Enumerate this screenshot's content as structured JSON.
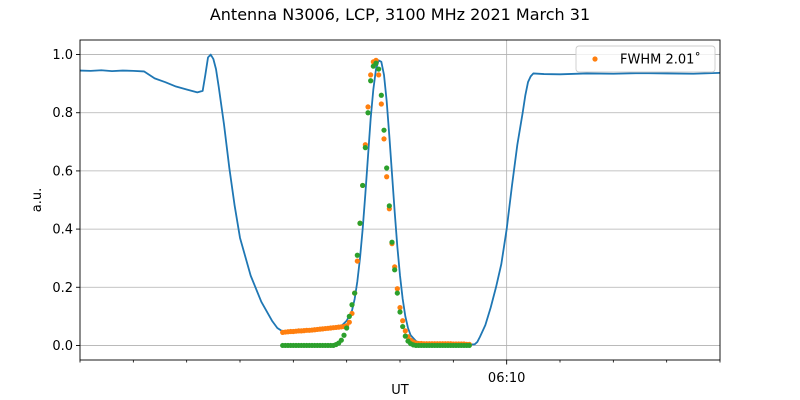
{
  "chart_data": {
    "type": "line",
    "title": "Antenna N3006, LCP, 3100 MHz 2021 March 31",
    "xlabel": "UT",
    "ylabel": "a.u.",
    "x_units": "minutes relative to 06:10 UT",
    "xlim": [
      -8,
      4
    ],
    "ylim": [
      -0.05,
      1.05
    ],
    "y_ticks": [
      0.0,
      0.2,
      0.4,
      0.6,
      0.8,
      1.0
    ],
    "y_tick_labels": [
      "0.0",
      "0.2",
      "0.4",
      "0.6",
      "0.8",
      "1.0"
    ],
    "x_major_ticks": [
      {
        "x": 0,
        "label": "06:10"
      }
    ],
    "x_minor_ticks": [
      -8,
      -7,
      -6,
      -5,
      -4,
      -3,
      -2,
      -1,
      1,
      2,
      3,
      4
    ],
    "grid": {
      "y_major": true,
      "x_major": true
    },
    "legend": {
      "position": "top-right",
      "entries": [
        {
          "label": "FWHM 2.01$^\\circ$",
          "display": "FWHM 2.01˚",
          "color": "#ff7f0e",
          "marker": "dot"
        }
      ]
    },
    "series": [
      {
        "kind": "line",
        "color": "#1f77b4",
        "points": [
          [
            -8.0,
            0.945
          ],
          [
            -7.8,
            0.944
          ],
          [
            -7.6,
            0.946
          ],
          [
            -7.4,
            0.943
          ],
          [
            -7.2,
            0.945
          ],
          [
            -7.0,
            0.944
          ],
          [
            -6.8,
            0.942
          ],
          [
            -6.7,
            0.93
          ],
          [
            -6.6,
            0.918
          ],
          [
            -6.4,
            0.905
          ],
          [
            -6.2,
            0.89
          ],
          [
            -6.0,
            0.88
          ],
          [
            -5.8,
            0.87
          ],
          [
            -5.7,
            0.875
          ],
          [
            -5.65,
            0.93
          ],
          [
            -5.6,
            0.99
          ],
          [
            -5.55,
            1.0
          ],
          [
            -5.5,
            0.985
          ],
          [
            -5.45,
            0.95
          ],
          [
            -5.4,
            0.89
          ],
          [
            -5.3,
            0.76
          ],
          [
            -5.2,
            0.61
          ],
          [
            -5.1,
            0.48
          ],
          [
            -5.0,
            0.37
          ],
          [
            -4.8,
            0.24
          ],
          [
            -4.6,
            0.15
          ],
          [
            -4.4,
            0.085
          ],
          [
            -4.3,
            0.06
          ],
          [
            -4.2,
            0.048
          ],
          [
            -4.0,
            0.05
          ],
          [
            -3.6,
            0.054
          ],
          [
            -3.2,
            0.06
          ],
          [
            -3.1,
            0.067
          ],
          [
            -3.0,
            0.085
          ],
          [
            -2.9,
            0.12
          ],
          [
            -2.85,
            0.16
          ],
          [
            -2.8,
            0.22
          ],
          [
            -2.75,
            0.3
          ],
          [
            -2.7,
            0.4
          ],
          [
            -2.65,
            0.52
          ],
          [
            -2.6,
            0.65
          ],
          [
            -2.55,
            0.78
          ],
          [
            -2.5,
            0.88
          ],
          [
            -2.45,
            0.95
          ],
          [
            -2.4,
            0.98
          ],
          [
            -2.35,
            0.975
          ],
          [
            -2.3,
            0.93
          ],
          [
            -2.25,
            0.84
          ],
          [
            -2.2,
            0.72
          ],
          [
            -2.15,
            0.59
          ],
          [
            -2.1,
            0.46
          ],
          [
            -2.05,
            0.34
          ],
          [
            -2.0,
            0.24
          ],
          [
            -1.95,
            0.16
          ],
          [
            -1.9,
            0.1
          ],
          [
            -1.85,
            0.06
          ],
          [
            -1.8,
            0.035
          ],
          [
            -1.7,
            0.015
          ],
          [
            -1.6,
            0.006
          ],
          [
            -1.2,
            0.004
          ],
          [
            -0.8,
            0.003
          ],
          [
            -1.0,
            0.003
          ],
          [
            -0.6,
            0.004
          ],
          [
            -0.55,
            0.012
          ],
          [
            -0.5,
            0.03
          ],
          [
            -0.4,
            0.07
          ],
          [
            -0.3,
            0.13
          ],
          [
            -0.2,
            0.2
          ],
          [
            -0.1,
            0.28
          ],
          [
            0.0,
            0.4
          ],
          [
            0.1,
            0.55
          ],
          [
            0.2,
            0.69
          ],
          [
            0.3,
            0.8
          ],
          [
            0.35,
            0.86
          ],
          [
            0.4,
            0.905
          ],
          [
            0.45,
            0.925
          ],
          [
            0.5,
            0.935
          ],
          [
            0.7,
            0.933
          ],
          [
            1.0,
            0.932
          ],
          [
            1.5,
            0.935
          ],
          [
            2.0,
            0.934
          ],
          [
            2.5,
            0.936
          ],
          [
            3.0,
            0.935
          ],
          [
            3.5,
            0.934
          ],
          [
            4.0,
            0.937
          ]
        ]
      },
      {
        "kind": "scatter",
        "name": "FWHM 2.01˚",
        "color": "#ff7f0e",
        "x": [
          -4.2,
          -4.15,
          -4.1,
          -4.05,
          -4.0,
          -3.95,
          -3.9,
          -3.85,
          -3.8,
          -3.75,
          -3.7,
          -3.65,
          -3.6,
          -3.55,
          -3.5,
          -3.45,
          -3.4,
          -3.35,
          -3.3,
          -3.25,
          -3.2,
          -3.15,
          -3.1,
          -3.05,
          -3.0,
          -2.95,
          -2.9,
          -2.85,
          -2.8,
          -2.75,
          -2.7,
          -2.65,
          -2.6,
          -2.55,
          -2.5,
          -2.45,
          -2.4,
          -2.35,
          -2.3,
          -2.25,
          -2.2,
          -2.15,
          -2.1,
          -2.05,
          -2.0,
          -1.95,
          -1.9,
          -1.85,
          -1.8,
          -1.75,
          -1.7,
          -1.65,
          -1.6,
          -1.55,
          -1.5,
          -1.45,
          -1.4,
          -1.35,
          -1.3,
          -1.25,
          -1.2,
          -1.15,
          -1.1,
          -1.05,
          -1.0,
          -0.95,
          -0.9,
          -0.85,
          -0.8,
          -0.75,
          -0.7
        ],
        "y": [
          0.045,
          0.046,
          0.047,
          0.048,
          0.048,
          0.049,
          0.05,
          0.05,
          0.051,
          0.052,
          0.052,
          0.053,
          0.054,
          0.055,
          0.056,
          0.057,
          0.058,
          0.059,
          0.06,
          0.061,
          0.062,
          0.063,
          0.064,
          0.065,
          0.068,
          0.08,
          0.11,
          0.18,
          0.29,
          0.42,
          0.55,
          0.69,
          0.82,
          0.93,
          0.975,
          0.98,
          0.93,
          0.83,
          0.71,
          0.58,
          0.47,
          0.35,
          0.27,
          0.195,
          0.13,
          0.085,
          0.05,
          0.03,
          0.018,
          0.012,
          0.008,
          0.007,
          0.007,
          0.006,
          0.006,
          0.006,
          0.006,
          0.006,
          0.006,
          0.006,
          0.006,
          0.006,
          0.006,
          0.006,
          0.005,
          0.005,
          0.005,
          0.005,
          0.005,
          0.004,
          0.004
        ]
      },
      {
        "kind": "scatter",
        "color": "#2ca02c",
        "x": [
          -4.2,
          -4.15,
          -4.1,
          -4.05,
          -4.0,
          -3.95,
          -3.9,
          -3.85,
          -3.8,
          -3.75,
          -3.7,
          -3.65,
          -3.6,
          -3.55,
          -3.5,
          -3.45,
          -3.4,
          -3.35,
          -3.3,
          -3.25,
          -3.2,
          -3.15,
          -3.1,
          -3.05,
          -3.0,
          -2.95,
          -2.9,
          -2.85,
          -2.8,
          -2.75,
          -2.7,
          -2.65,
          -2.6,
          -2.55,
          -2.5,
          -2.45,
          -2.4,
          -2.35,
          -2.3,
          -2.25,
          -2.2,
          -2.15,
          -2.1,
          -2.05,
          -2.0,
          -1.95,
          -1.9,
          -1.85,
          -1.8,
          -1.75,
          -1.7,
          -1.65,
          -1.6,
          -1.55,
          -1.5,
          -1.45,
          -1.4,
          -1.35,
          -1.3,
          -1.25,
          -1.2,
          -1.15,
          -1.1,
          -1.05,
          -1.0,
          -0.95,
          -0.9,
          -0.85,
          -0.8,
          -0.75,
          -0.7
        ],
        "y": [
          0.0,
          0.0,
          0.0,
          0.0,
          0.0,
          0.0,
          0.0,
          0.0,
          0.0,
          0.0,
          0.0,
          0.0,
          0.0,
          0.0,
          0.0,
          0.0,
          0.0,
          0.0,
          0.0,
          0.0,
          0.003,
          0.008,
          0.018,
          0.035,
          0.06,
          0.1,
          0.14,
          0.18,
          0.31,
          0.42,
          0.55,
          0.68,
          0.8,
          0.91,
          0.96,
          0.97,
          0.95,
          0.86,
          0.74,
          0.61,
          0.48,
          0.355,
          0.26,
          0.18,
          0.115,
          0.065,
          0.032,
          0.015,
          0.006,
          0.002,
          0.0,
          0.0,
          0.0,
          0.0,
          0.0,
          0.0,
          0.0,
          0.0,
          0.0,
          0.0,
          0.0,
          0.0,
          0.0,
          0.0,
          0.0,
          0.0,
          0.0,
          0.0,
          0.0,
          0.0,
          0.0
        ]
      }
    ]
  }
}
